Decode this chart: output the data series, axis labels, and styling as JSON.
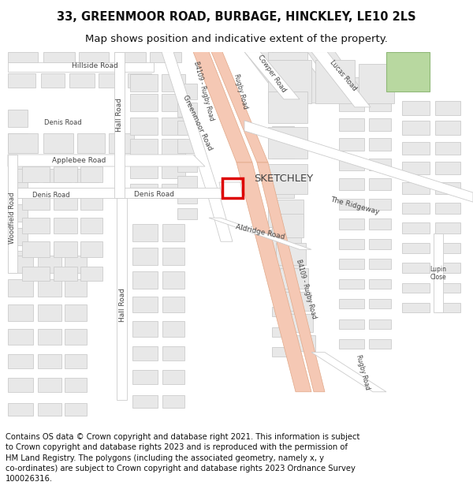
{
  "title_line1": "33, GREENMOOR ROAD, BURBAGE, HINCKLEY, LE10 2LS",
  "title_line2": "Map shows position and indicative extent of the property.",
  "footer_text": "Contains OS data © Crown copyright and database right 2021. This information is subject to Crown copyright and database rights 2023 and is reproduced with the permission of HM Land Registry. The polygons (including the associated geometry, namely x, y co-ordinates) are subject to Crown copyright and database rights 2023 Ordnance Survey 100026316.",
  "map_bg": "#f5f5f5",
  "road_fill": "#ffffff",
  "road_edge": "#cccccc",
  "block_fill": "#e8e8e8",
  "block_edge": "#cccccc",
  "b4109_fill": "#f5c8b4",
  "b4109_edge": "#e0a888",
  "green_fill": "#b8d8a0",
  "green_edge": "#90b878",
  "plot_edge": "#dd0000",
  "plot_fill": "#ffffff",
  "label_color": "#444444",
  "title_fs": 10.5,
  "subtitle_fs": 9.5,
  "footer_fs": 7.2
}
